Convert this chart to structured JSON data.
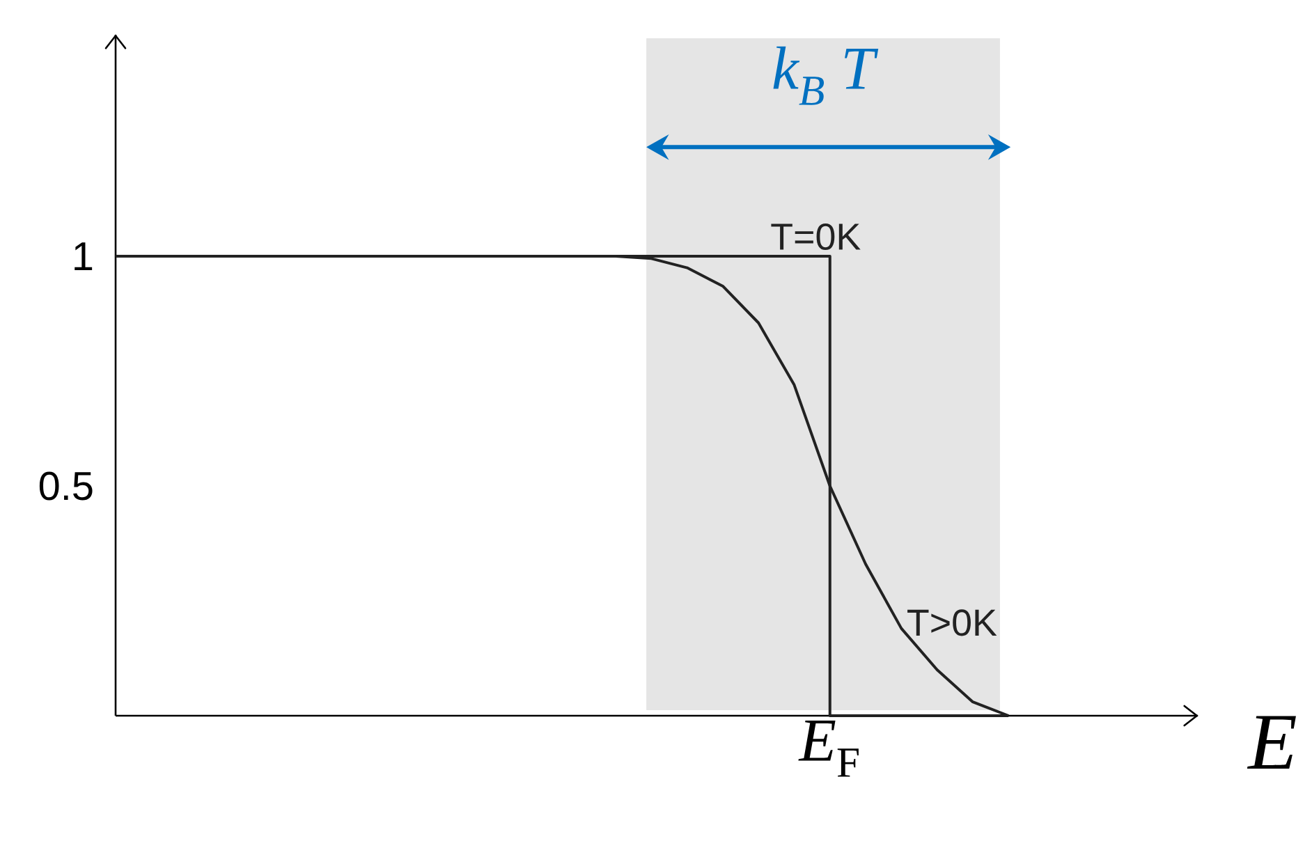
{
  "chart_data": {
    "type": "line",
    "xlabel": "E",
    "ylim": [
      0,
      1.482
    ],
    "categories": [
      null,
      null,
      null,
      null,
      null,
      null,
      null,
      null,
      null,
      null,
      null,
      null,
      null,
      null,
      null,
      null,
      null,
      null,
      null,
      null,
      null,
      null,
      null,
      null,
      null,
      null
    ],
    "yticks": [
      0.5,
      1
    ],
    "tick_labels": "y",
    "grid": false,
    "marker": "none",
    "line_style": "solid",
    "annotations": [
      "*E*$_{F}$",
      "k$_{B}$ T"
    ],
    "series": [
      {
        "name": "T=0K",
        "type": "step",
        "color": "#222222",
        "values": [
          1,
          1,
          1,
          1,
          1,
          1,
          1,
          1,
          1,
          1,
          1,
          1,
          1,
          1,
          1,
          1,
          1,
          1,
          1,
          1,
          0,
          0,
          0,
          0,
          0,
          0
        ]
      },
      {
        "name": "T>0K",
        "color": "#222222",
        "values": [
          1,
          1,
          1,
          1,
          1,
          1,
          1,
          1,
          1,
          1,
          1,
          1,
          1,
          1,
          1,
          0.995,
          0.975,
          0.935,
          0.855,
          0.72,
          0.5,
          0.33,
          0.19,
          0.1,
          0.03,
          0
        ]
      }
    ]
  }
}
